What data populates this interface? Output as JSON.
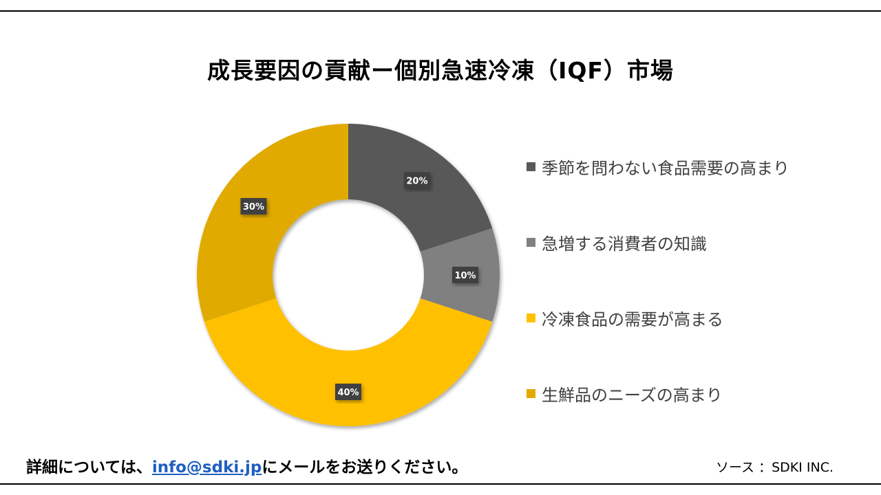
{
  "footer": {
    "note_prefix": "詳細については、",
    "email": "info@sdki.jp",
    "note_suffix": "にメールをお送りください。",
    "source": "ソース ：SDKI INC."
  },
  "colors": {
    "series": [
      "#595959",
      "#808080",
      "#ffc000",
      "#e1aa00"
    ],
    "label_box": "#404040",
    "label_text": "#ffffff"
  },
  "chart_data": {
    "type": "pie",
    "title": "成長要因の貢献ー個別急速冷凍（IQF）市場",
    "donut": true,
    "legend_position": "right",
    "unit": "%",
    "categories": [
      "季節を問わない食品需要の高まり",
      "急増する消費者の知識",
      "冷凍食品の需要が高まる",
      "生鮮品のニーズの高まり"
    ],
    "values": [
      20,
      10,
      40,
      30
    ],
    "data_labels": [
      "20%",
      "10%",
      "40%",
      "30%"
    ]
  }
}
